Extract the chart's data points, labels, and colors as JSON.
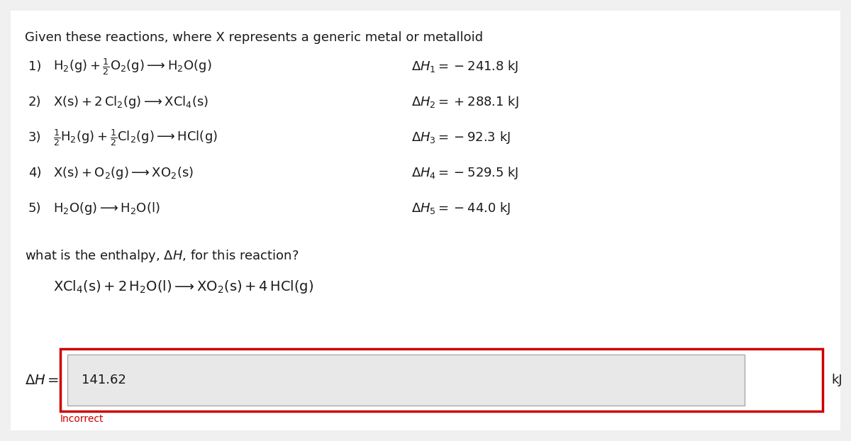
{
  "background_color": "#f0f0f0",
  "content_bg": "#ffffff",
  "title": "Given these reactions, where X represents a generic metal or metalloid",
  "reactions": [
    {
      "label": "1)",
      "equation": "$\\mathrm{H_2(g) + \\frac{1}{2}O_2(g) \\longrightarrow H_2O(g)}$",
      "delta_h": "$\\Delta H_1 = -241.8\\ \\mathrm{kJ}$"
    },
    {
      "label": "2)",
      "equation": "$\\mathrm{X(s) + 2\\,Cl_2(g) \\longrightarrow XCl_4(s)}$",
      "delta_h": "$\\Delta H_2 = +288.1\\ \\mathrm{kJ}$"
    },
    {
      "label": "3)",
      "equation": "$\\mathrm{\\frac{1}{2}H_2(g) + \\frac{1}{2}Cl_2(g) \\longrightarrow HCl(g)}$",
      "delta_h": "$\\Delta H_3 = -92.3\\ \\mathrm{kJ}$"
    },
    {
      "label": "4)",
      "equation": "$\\mathrm{X(s) + O_2(g) \\longrightarrow XO_2(s)}$",
      "delta_h": "$\\Delta H_4 = -529.5\\ \\mathrm{kJ}$"
    },
    {
      "label": "5)",
      "equation": "$\\mathrm{H_2O(g) \\longrightarrow H_2O(l)}$",
      "delta_h": "$\\Delta H_5 = -44.0\\ \\mathrm{kJ}$"
    }
  ],
  "question": "what is the enthalpy, $\\Delta H$, for this reaction?",
  "target_reaction": "$\\mathrm{XCl_4(s) + 2\\,H_2O(l) \\longrightarrow XO_2(s) + 4\\,HCl(g)}$",
  "answer_label": "$\\Delta H =$",
  "answer_value": "141.62",
  "answer_unit": "kJ",
  "incorrect_text": "Incorrect",
  "incorrect_color": "#cc0000",
  "input_box_color": "#e8e8e8",
  "input_box_border": "#aaaaaa",
  "outer_box_color": "#cc0000",
  "text_color": "#1a1a1a",
  "font_size_title": 13,
  "font_size_reaction": 13,
  "font_size_answer": 13,
  "font_size_incorrect": 10
}
